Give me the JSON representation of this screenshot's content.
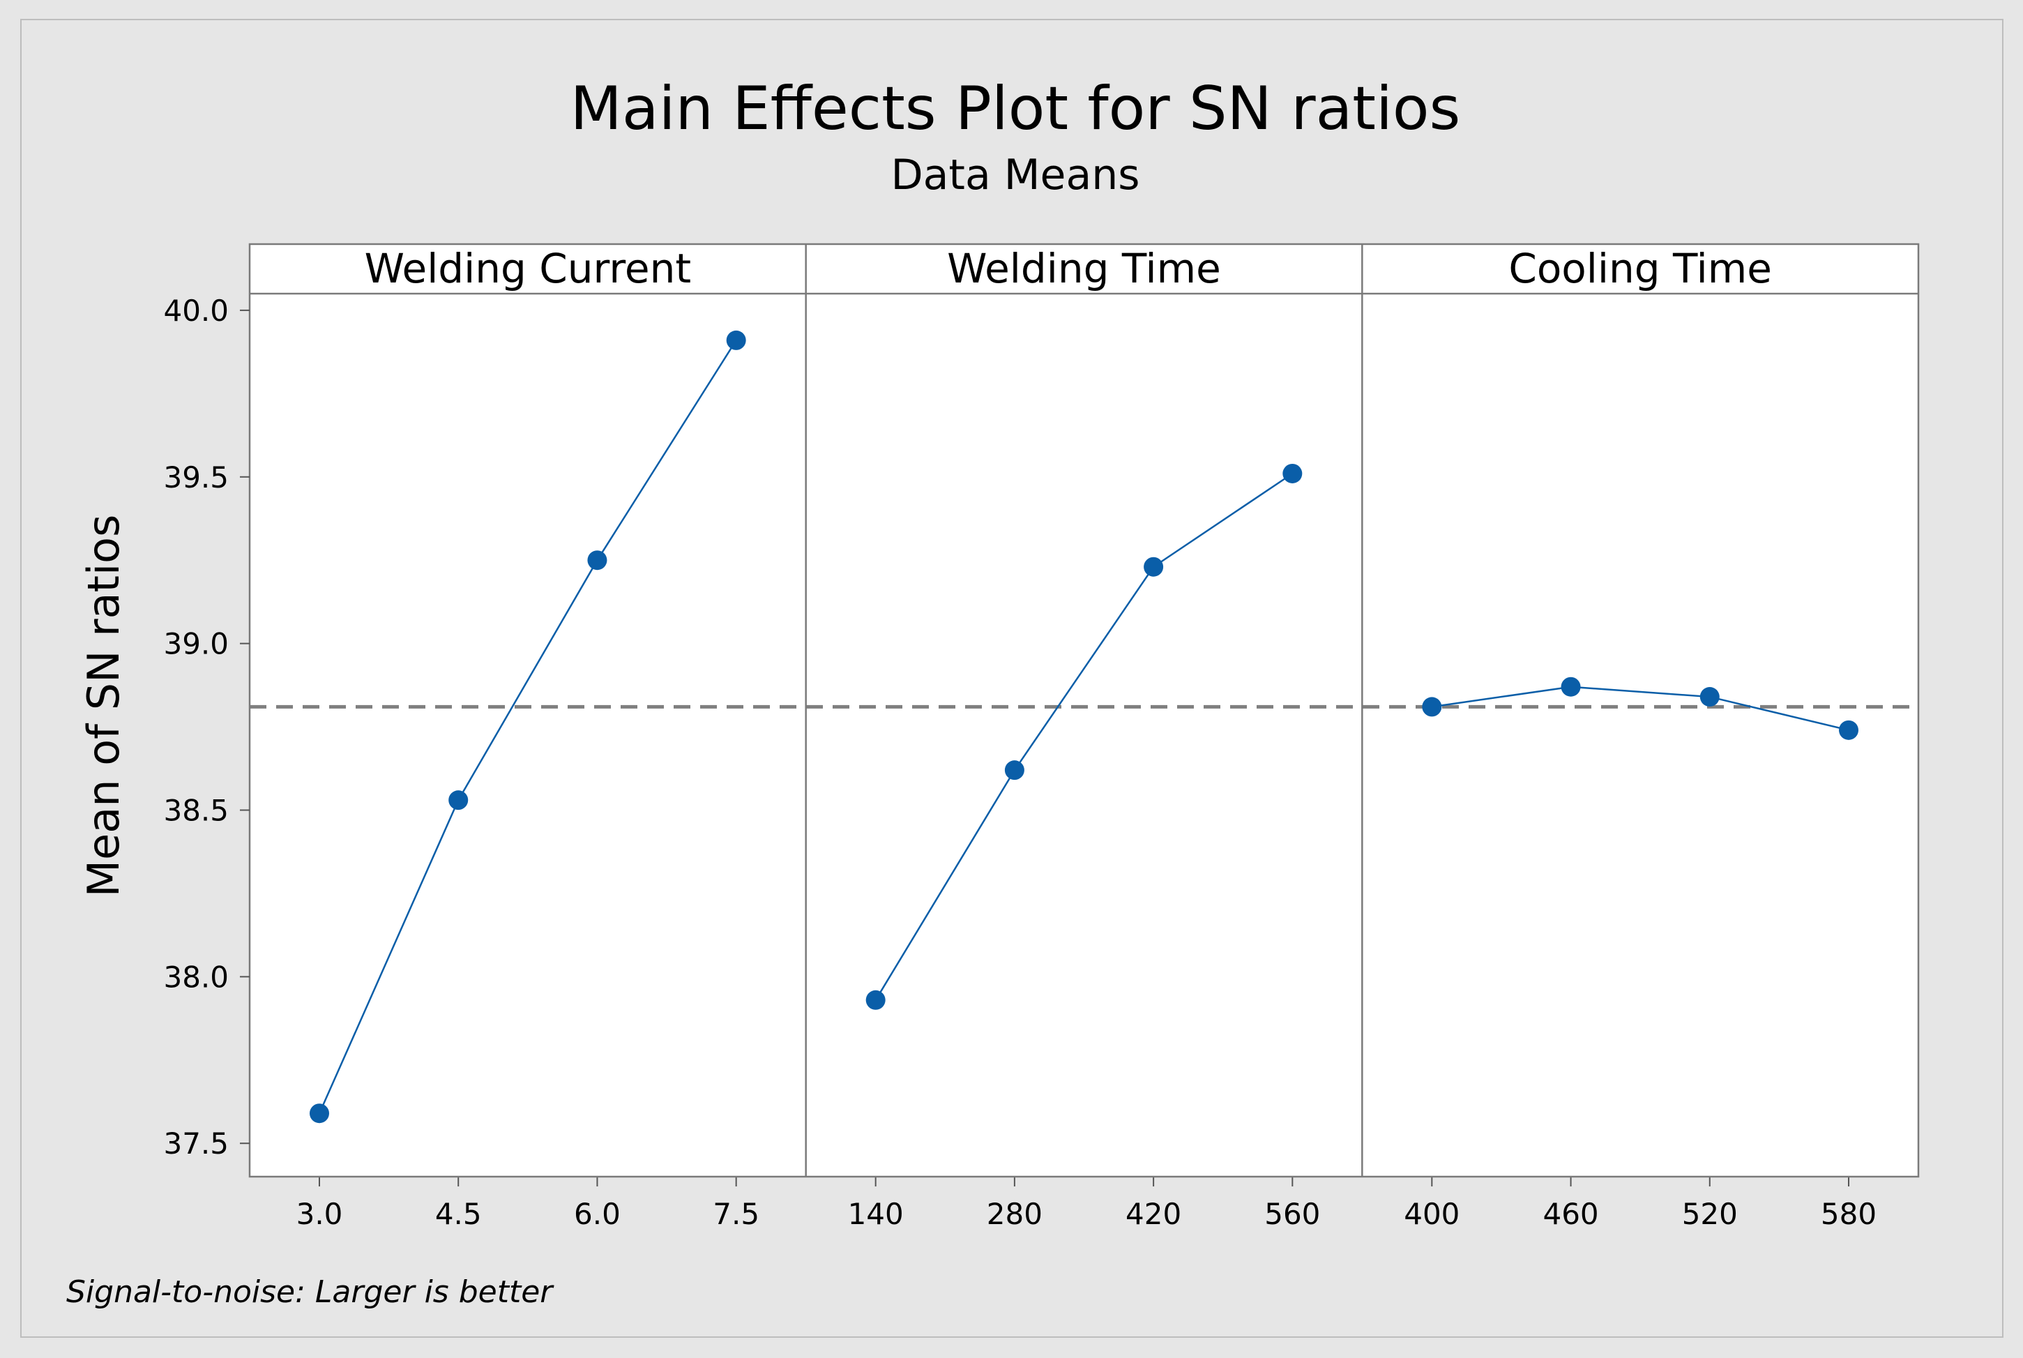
{
  "chart_data": {
    "type": "line",
    "title": "Main Effects Plot for SN ratios",
    "subtitle": "Data Means",
    "ylabel": "Mean of SN ratios",
    "ylim": [
      37.4,
      40.05
    ],
    "yticks": [
      37.5,
      38.0,
      38.5,
      39.0,
      39.5,
      40.0
    ],
    "ytick_labels": [
      "37.5",
      "38.0",
      "38.5",
      "39.0",
      "39.5",
      "40.0"
    ],
    "reference_line": {
      "value": 38.81,
      "style": "dashed"
    },
    "footnote": "Signal-to-noise: Larger is better",
    "panels": [
      {
        "name": "Welding Current",
        "categories": [
          "3.0",
          "4.5",
          "6.0",
          "7.5"
        ],
        "values": [
          37.59,
          38.53,
          39.25,
          39.91
        ]
      },
      {
        "name": "Welding Time",
        "categories": [
          "140",
          "280",
          "420",
          "560"
        ],
        "values": [
          37.93,
          38.62,
          39.23,
          39.51
        ]
      },
      {
        "name": "Cooling Time",
        "categories": [
          "400",
          "460",
          "520",
          "580"
        ],
        "values": [
          38.81,
          38.87,
          38.84,
          38.74
        ]
      }
    ]
  },
  "colors": {
    "background": "#e6e6e6",
    "plot_background": "#ffffff",
    "series": "#0a5ea8",
    "reference": "#7f7f7f",
    "frame": "#7a7a7a"
  }
}
